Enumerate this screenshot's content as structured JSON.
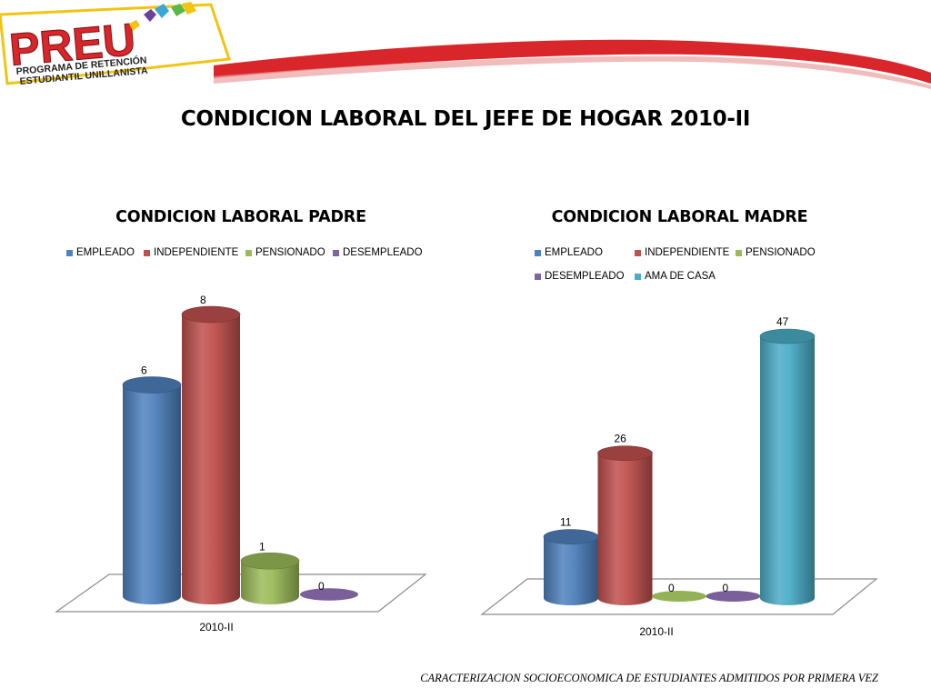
{
  "slide": {
    "title": "CONDICION LABORAL  DEL JEFE DE HOGAR  2010-II",
    "footer": "CARACTERIZACION SOCIOECONOMICA DE ESTUDIANTES ADMITIDOS POR PRIMERA VEZ"
  },
  "logo": {
    "name": "PREU",
    "line1": "PROGRAMA DE RETENCIÓN",
    "line2": "ESTUDIANTIL UNILLANISTA"
  },
  "colors": {
    "empleado": "#4F81BD",
    "independiente": "#C0504D",
    "pensionado": "#9BBB59",
    "desempleado": "#8064A2",
    "ama_de_casa": "#4BACC6",
    "logo_red": "#D9262B",
    "logo_yellow": "#F2C40F"
  },
  "chart_data": [
    {
      "type": "bar",
      "title": "CONDICION LABORAL PADRE",
      "categories": [
        "2010-II"
      ],
      "series": [
        {
          "name": "EMPLEADO",
          "values": [
            6
          ]
        },
        {
          "name": "INDEPENDIENTE",
          "values": [
            8
          ]
        },
        {
          "name": "PENSIONADO",
          "values": [
            1
          ]
        },
        {
          "name": "DESEMPLEADO",
          "values": [
            0
          ]
        }
      ],
      "ylim": [
        0,
        8
      ],
      "grid": false,
      "legend": "top",
      "style": "3d-cylinder"
    },
    {
      "type": "bar",
      "title": "CONDICION LABORAL MADRE",
      "categories": [
        "2010-II"
      ],
      "series": [
        {
          "name": "EMPLEADO",
          "values": [
            11
          ]
        },
        {
          "name": "INDEPENDIENTE",
          "values": [
            26
          ]
        },
        {
          "name": "PENSIONADO",
          "values": [
            0
          ]
        },
        {
          "name": "DESEMPLEADO",
          "values": [
            0
          ]
        },
        {
          "name": "AMA DE CASA",
          "values": [
            47
          ]
        }
      ],
      "ylim": [
        0,
        47
      ],
      "grid": false,
      "legend": "top",
      "style": "3d-cylinder"
    }
  ]
}
